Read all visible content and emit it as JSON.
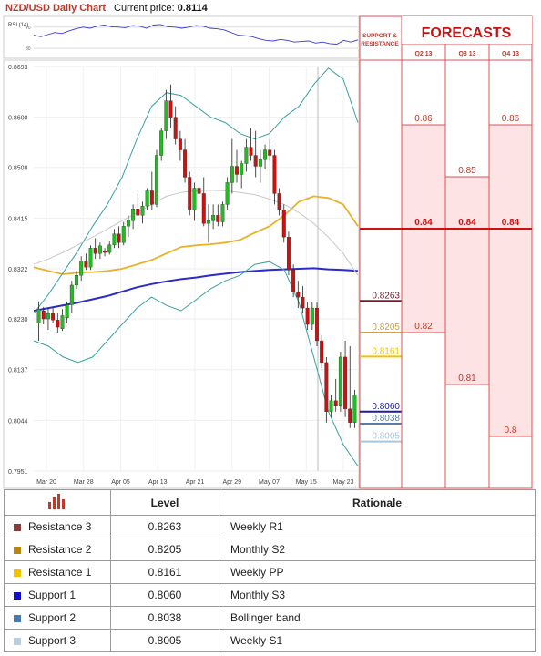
{
  "header": {
    "title": "NZD/USD Daily Chart",
    "price_label": "Current price:",
    "price_value": "0.8114"
  },
  "rsi": {
    "label": "RSI (14)",
    "ticks": [
      "70",
      "30"
    ]
  },
  "sr_panel": {
    "title_line1": "SUPPORT &",
    "title_line2": "RESISTANCE"
  },
  "forecasts": {
    "title": "FORECASTS",
    "quarters": [
      "Q2 13",
      "Q3 13",
      "Q4 13"
    ],
    "bands": [
      {
        "quarter": "Q2 13",
        "values": [
          0.86,
          0.84,
          0.82
        ],
        "labels": [
          "0.86",
          "0.84",
          "0.82"
        ]
      },
      {
        "quarter": "Q3 13",
        "values": [
          0.85,
          0.84,
          0.81
        ],
        "labels": [
          "0.85",
          "0.84",
          "0.81"
        ]
      },
      {
        "quarter": "Q4 13",
        "values": [
          0.86,
          0.84,
          0.8
        ],
        "labels": [
          "0.86",
          "0.84",
          "0.8"
        ]
      }
    ]
  },
  "chart_data": {
    "type": "candlestick",
    "title": "NZD/USD Daily Chart",
    "x_ticks": [
      "Mar 20",
      "Mar 28",
      "Apr 05",
      "Apr 13",
      "Apr 21",
      "Apr 29",
      "May 07",
      "May 15",
      "May 23"
    ],
    "y_ticks": [
      "0.8693",
      "0.8600",
      "0.8508",
      "0.8415",
      "0.8322",
      "0.8230",
      "0.8137",
      "0.8044",
      "0.7951"
    ],
    "ylim": [
      0.7951,
      0.8693
    ],
    "colors": {
      "bull": "#22bb22",
      "bear": "#cc1111"
    },
    "candles": [
      [
        0.8222,
        0.8262,
        0.819,
        0.8248
      ],
      [
        0.8245,
        0.8252,
        0.822,
        0.823
      ],
      [
        0.823,
        0.825,
        0.821,
        0.824
      ],
      [
        0.824,
        0.825,
        0.8222,
        0.8228
      ],
      [
        0.8228,
        0.824,
        0.8205,
        0.8215
      ],
      [
        0.8212,
        0.8248,
        0.8208,
        0.8236
      ],
      [
        0.8232,
        0.8262,
        0.8222,
        0.8256
      ],
      [
        0.8256,
        0.83,
        0.824,
        0.8292
      ],
      [
        0.8292,
        0.8318,
        0.8285,
        0.831
      ],
      [
        0.831,
        0.8345,
        0.83,
        0.8336
      ],
      [
        0.8336,
        0.835,
        0.832,
        0.8325
      ],
      [
        0.8325,
        0.8365,
        0.832,
        0.836
      ],
      [
        0.836,
        0.8378,
        0.834,
        0.835
      ],
      [
        0.835,
        0.837,
        0.834,
        0.8364
      ],
      [
        0.8355,
        0.836,
        0.8345,
        0.8352
      ],
      [
        0.8352,
        0.8372,
        0.8348,
        0.8366
      ],
      [
        0.8366,
        0.8395,
        0.836,
        0.8386
      ],
      [
        0.8386,
        0.84,
        0.836,
        0.837
      ],
      [
        0.837,
        0.8408,
        0.8365,
        0.84
      ],
      [
        0.84,
        0.842,
        0.838,
        0.8412
      ],
      [
        0.841,
        0.844,
        0.8395,
        0.8432
      ],
      [
        0.8432,
        0.846,
        0.842,
        0.842
      ],
      [
        0.842,
        0.8445,
        0.8405,
        0.8437
      ],
      [
        0.8437,
        0.847,
        0.843,
        0.8465
      ],
      [
        0.8465,
        0.85,
        0.843,
        0.844
      ],
      [
        0.844,
        0.854,
        0.8435,
        0.853
      ],
      [
        0.853,
        0.858,
        0.852,
        0.8575
      ],
      [
        0.8575,
        0.865,
        0.856,
        0.863
      ],
      [
        0.863,
        0.866,
        0.858,
        0.86
      ],
      [
        0.86,
        0.862,
        0.855,
        0.856
      ],
      [
        0.856,
        0.8575,
        0.852,
        0.854
      ],
      [
        0.854,
        0.856,
        0.848,
        0.849
      ],
      [
        0.849,
        0.85,
        0.842,
        0.843
      ],
      [
        0.843,
        0.848,
        0.841,
        0.847
      ],
      [
        0.847,
        0.85,
        0.844,
        0.846
      ],
      [
        0.846,
        0.849,
        0.84,
        0.8405
      ],
      [
        0.8405,
        0.844,
        0.837,
        0.841
      ],
      [
        0.841,
        0.844,
        0.8395,
        0.842
      ],
      [
        0.842,
        0.844,
        0.84,
        0.8408
      ],
      [
        0.8408,
        0.8445,
        0.84,
        0.844
      ],
      [
        0.844,
        0.849,
        0.843,
        0.848
      ],
      [
        0.848,
        0.856,
        0.846,
        0.851
      ],
      [
        0.851,
        0.854,
        0.848,
        0.8495
      ],
      [
        0.8495,
        0.852,
        0.847,
        0.8515
      ],
      [
        0.8515,
        0.856,
        0.85,
        0.8545
      ],
      [
        0.8545,
        0.858,
        0.852,
        0.853
      ],
      [
        0.853,
        0.8575,
        0.849,
        0.851
      ],
      [
        0.851,
        0.854,
        0.848,
        0.8522
      ],
      [
        0.8522,
        0.855,
        0.8505,
        0.854
      ],
      [
        0.854,
        0.856,
        0.852,
        0.853
      ],
      [
        0.853,
        0.854,
        0.844,
        0.846
      ],
      [
        0.846,
        0.847,
        0.842,
        0.843
      ],
      [
        0.843,
        0.844,
        0.837,
        0.838
      ],
      [
        0.838,
        0.839,
        0.831,
        0.832
      ],
      [
        0.832,
        0.833,
        0.827,
        0.828
      ],
      [
        0.828,
        0.83,
        0.825,
        0.827
      ],
      [
        0.827,
        0.829,
        0.824,
        0.825
      ],
      [
        0.825,
        0.826,
        0.821,
        0.822
      ],
      [
        0.822,
        0.826,
        0.821,
        0.825
      ],
      [
        0.825,
        0.826,
        0.818,
        0.819
      ],
      [
        0.819,
        0.82,
        0.814,
        0.815
      ],
      [
        0.815,
        0.816,
        0.804,
        0.806
      ],
      [
        0.806,
        0.809,
        0.805,
        0.808
      ],
      [
        0.808,
        0.812,
        0.806,
        0.807
      ],
      [
        0.807,
        0.817,
        0.806,
        0.816
      ],
      [
        0.816,
        0.819,
        0.805,
        0.8065
      ],
      [
        0.8065,
        0.818,
        0.803,
        0.804
      ],
      [
        0.804,
        0.81,
        0.803,
        0.809
      ]
    ],
    "series": [
      {
        "name": "",
        "color": "#e8b12a",
        "values": [
          0.8325,
          0.8318,
          0.8312,
          0.8315,
          0.8316,
          0.8318,
          0.8322,
          0.833,
          0.8338,
          0.835,
          0.8362,
          0.8365,
          0.8367,
          0.837,
          0.8375,
          0.8388,
          0.84,
          0.842,
          0.8445,
          0.8455,
          0.8452,
          0.844,
          0.84
        ]
      },
      {
        "name": "",
        "color": "#2b2bcc",
        "values": [
          0.8245,
          0.825,
          0.8255,
          0.826,
          0.8266,
          0.8272,
          0.828,
          0.8288,
          0.8294,
          0.8299,
          0.8303,
          0.8306,
          0.831,
          0.8313,
          0.8316,
          0.8318,
          0.832,
          0.8321,
          0.8322,
          0.8323,
          0.8321,
          0.832,
          0.8318
        ]
      },
      {
        "name": "",
        "color": "#3aa0a0",
        "values": [
          0.824,
          0.8275,
          0.8315,
          0.8355,
          0.84,
          0.844,
          0.849,
          0.856,
          0.862,
          0.8645,
          0.864,
          0.862,
          0.86,
          0.859,
          0.857,
          0.856,
          0.857,
          0.86,
          0.862,
          0.866,
          0.869,
          0.867,
          0.859
        ]
      },
      {
        "name": "",
        "color": "#3aa0a0",
        "values": [
          0.819,
          0.818,
          0.816,
          0.815,
          0.816,
          0.819,
          0.822,
          0.825,
          0.827,
          0.8255,
          0.8245,
          0.8265,
          0.8285,
          0.83,
          0.831,
          0.833,
          0.8335,
          0.832,
          0.826,
          0.816,
          0.806,
          0.8,
          0.796
        ]
      },
      {
        "name": "",
        "color": "#c8c8c8",
        "values": [
          0.833,
          0.834,
          0.8352,
          0.8366,
          0.838,
          0.8395,
          0.841,
          0.8425,
          0.844,
          0.8455,
          0.8462,
          0.8465,
          0.8466,
          0.8465,
          0.8462,
          0.8458,
          0.845,
          0.844,
          0.8425,
          0.8405,
          0.838,
          0.835,
          0.831
        ]
      }
    ],
    "rsi_values": [
      55,
      52,
      56,
      60,
      58,
      63,
      67,
      70,
      68,
      72,
      74,
      71,
      70,
      69,
      73,
      72,
      68,
      74,
      75,
      71,
      70,
      68,
      70,
      73,
      72,
      68,
      67,
      65,
      60,
      55,
      54,
      52,
      48,
      45,
      44,
      47,
      45,
      42,
      43,
      44,
      40,
      42,
      39,
      38,
      45,
      42,
      46
    ],
    "levels": [
      {
        "name": "Resistance 3",
        "value": 0.8263,
        "label": "0.8263",
        "color": "#7b1b2e"
      },
      {
        "name": "Resistance 2",
        "value": 0.8205,
        "label": "0.8205",
        "color": "#c9a34a"
      },
      {
        "name": "Resistance 1",
        "value": 0.8161,
        "label": "0.8161",
        "color": "#f2c200"
      },
      {
        "name": "Support 1",
        "value": 0.806,
        "label": "0.8060",
        "color": "#1a1aa0"
      },
      {
        "name": "Support 2",
        "value": 0.8038,
        "label": "0.8038",
        "color": "#5a7ca8"
      },
      {
        "name": "Support 3",
        "value": 0.8005,
        "label": "0.8005",
        "color": "#a9c6dd"
      }
    ]
  },
  "table": {
    "header": {
      "level": "Level",
      "rationale": "Rationale"
    },
    "rows": [
      {
        "name": "Resistance 3",
        "level": "0.8263",
        "rationale": "Weekly R1",
        "color": "#8b3a3a"
      },
      {
        "name": "Resistance 2",
        "level": "0.8205",
        "rationale": "Monthly S2",
        "color": "#b8860b"
      },
      {
        "name": "Resistance 1",
        "level": "0.8161",
        "rationale": "Weekly PP",
        "color": "#f2c200"
      },
      {
        "name": "Support 1",
        "level": "0.8060",
        "rationale": "Monthly S3",
        "color": "#1010c8"
      },
      {
        "name": "Support 2",
        "level": "0.8038",
        "rationale": "Bollinger band",
        "color": "#4a78b0"
      },
      {
        "name": "Support 3",
        "level": "0.8005",
        "rationale": "Weekly S1",
        "color": "#b8cfe3"
      }
    ]
  }
}
